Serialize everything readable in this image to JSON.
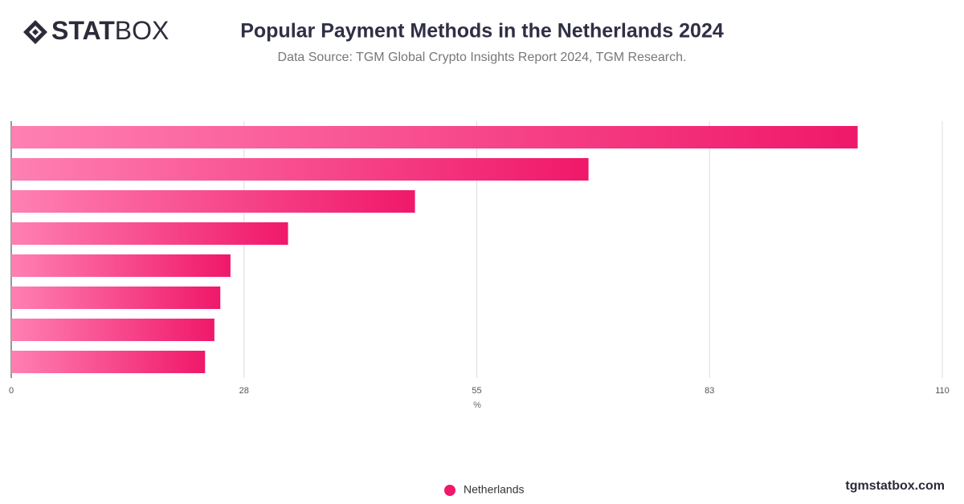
{
  "logo": [
    "STAT",
    "BOX"
  ],
  "footer": "tgmstatbox.com",
  "chart_data": {
    "type": "bar",
    "orientation": "horizontal",
    "title": "Popular Payment Methods in the Netherlands 2024",
    "subtitle": "Data Source: TGM Global Crypto Insights Report 2024, TGM Research.",
    "x_label": "%",
    "categories": [
      null,
      null,
      null,
      null,
      null,
      null,
      null,
      null
    ],
    "series": [
      {
        "name": "Netherlands",
        "color": "#f0186a",
        "values": [
          100.0,
          68.2,
          47.7,
          32.7,
          25.9,
          24.7,
          24.0,
          22.9
        ]
      }
    ],
    "xlim": [
      0,
      110
    ],
    "xticks": [
      0,
      {
        "value": 27.5,
        "label": "28"
      },
      55,
      {
        "value": 82.5,
        "label": "83"
      },
      110
    ],
    "grid": true,
    "legend": "bottom"
  }
}
